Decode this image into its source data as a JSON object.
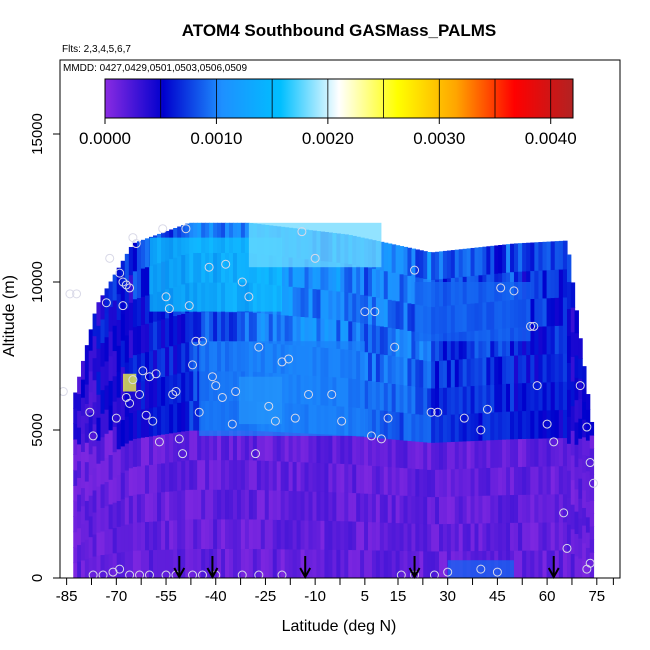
{
  "chart_data": {
    "type": "heatmap",
    "title": "ATOM4 Southbound GASMass_PALMS",
    "flights_note": "Flts: 2,3,4,5,6,7",
    "dates_note": "MMDD: 0427,0429,0501,0503,0506,0509",
    "xlabel": "Latitude (deg N)",
    "ylabel": "Altitude (m)",
    "xlim": [
      -87,
      82
    ],
    "ylim": [
      0,
      17500
    ],
    "x_ticks": [
      -85,
      -70,
      -55,
      -40,
      -25,
      -10,
      5,
      15,
      30,
      45,
      60,
      75
    ],
    "x_tick_labels": [
      "-85",
      "-70",
      "-55",
      "-40",
      "-25",
      "-10",
      "5",
      "15",
      "30",
      "45",
      "60",
      "75"
    ],
    "x_minor_ticks": [
      -77.5,
      -62.5,
      -47.5,
      -32.5,
      -17.5,
      -2.5,
      22.5,
      37.5,
      52.5,
      67.5,
      80
    ],
    "y_ticks": [
      0,
      5000,
      10000,
      15000
    ],
    "y_tick_labels": [
      "0",
      "5000",
      "10000",
      "15000"
    ],
    "colorbar": {
      "range": [
        0,
        0.0042
      ],
      "ticks": [
        0.0,
        0.001,
        0.002,
        0.003,
        0.004
      ],
      "tick_labels": [
        "0.0000",
        "0.0010",
        "0.0020",
        "0.0030",
        "0.0040"
      ],
      "colors": [
        "#8a2be2",
        "#0000cd",
        "#1e90ff",
        "#00bfff",
        "#ffffff",
        "#ffff00",
        "#ffa500",
        "#ff0000",
        "#b22222"
      ]
    },
    "columns": [
      {
        "x": [
          -83,
          -76
        ],
        "zmax": [
          6000,
          9200
        ],
        "base": 0.0002
      },
      {
        "x": [
          -76,
          -65
        ],
        "zmax": [
          9200,
          11300
        ],
        "base": 0.0003
      },
      {
        "x": [
          -65,
          -48
        ],
        "zmax": [
          11300,
          12000
        ],
        "base": 0.0004
      },
      {
        "x": [
          -48,
          -30
        ],
        "zmax": [
          12000,
          12000
        ],
        "base": 0.0006
      },
      {
        "x": [
          -30,
          0
        ],
        "zmax": [
          12000,
          11600
        ],
        "base": 0.0008
      },
      {
        "x": [
          0,
          25
        ],
        "zmax": [
          11600,
          11000
        ],
        "base": 0.0007
      },
      {
        "x": [
          25,
          50
        ],
        "zmax": [
          11000,
          11300
        ],
        "base": 0.0005
      },
      {
        "x": [
          50,
          66
        ],
        "zmax": [
          11300,
          11400
        ],
        "base": 0.0004
      },
      {
        "x": [
          66,
          74
        ],
        "zmax": [
          11400,
          4800
        ],
        "base": 0.0003
      }
    ],
    "features": [
      {
        "name": "upper-tropospheric-band-south",
        "x": [
          -60,
          -20
        ],
        "z": [
          9000,
          11500
        ],
        "value": 0.0016
      },
      {
        "name": "upper-tropospheric-band-north",
        "x": [
          -30,
          10
        ],
        "z": [
          10500,
          12000
        ],
        "value": 0.0018
      },
      {
        "name": "mid-level-plume",
        "x": [
          -33,
          -20
        ],
        "z": [
          5200,
          6800
        ],
        "value": 0.0017
      },
      {
        "name": "mid-level-hotspot",
        "x": [
          -68,
          -64
        ],
        "z": [
          6300,
          6900
        ],
        "value": 0.0025
      },
      {
        "name": "blue-band-mid",
        "x": [
          -45,
          5
        ],
        "z": [
          4800,
          8000
        ],
        "value": 0.001
      },
      {
        "name": "blue-band-north",
        "x": [
          20,
          55
        ],
        "z": [
          8000,
          10000
        ],
        "value": 0.0009
      },
      {
        "name": "surface-blue-north",
        "x": [
          30,
          50
        ],
        "z": [
          0,
          600
        ],
        "value": 0.0009
      }
    ],
    "sample_points": [
      [
        -86,
        6300
      ],
      [
        -84,
        9600
      ],
      [
        -82,
        9600
      ],
      [
        -78,
        5600
      ],
      [
        -77,
        4800
      ],
      [
        -73,
        9300
      ],
      [
        -72,
        10800
      ],
      [
        -70,
        5400
      ],
      [
        -69,
        10300
      ],
      [
        -68,
        10000
      ],
      [
        -67,
        9900
      ],
      [
        -66,
        9800
      ],
      [
        -65,
        11500
      ],
      [
        -64,
        11300
      ],
      [
        -68,
        9200
      ],
      [
        -67,
        6100
      ],
      [
        -66,
        5900
      ],
      [
        -65,
        6700
      ],
      [
        -63,
        6200
      ],
      [
        -62,
        7000
      ],
      [
        -61,
        5500
      ],
      [
        -60,
        6800
      ],
      [
        -59,
        5300
      ],
      [
        -58,
        6900
      ],
      [
        -57,
        4600
      ],
      [
        -56,
        11800
      ],
      [
        -55,
        9500
      ],
      [
        -54,
        9100
      ],
      [
        -53,
        6200
      ],
      [
        -52,
        6300
      ],
      [
        -51,
        4700
      ],
      [
        -50,
        4200
      ],
      [
        -49,
        11800
      ],
      [
        -48,
        9200
      ],
      [
        -47,
        7200
      ],
      [
        -46,
        8000
      ],
      [
        -45,
        5600
      ],
      [
        -44,
        8000
      ],
      [
        -42,
        10500
      ],
      [
        -41,
        6800
      ],
      [
        -40,
        6500
      ],
      [
        -38,
        6100
      ],
      [
        -37,
        10600
      ],
      [
        -35,
        5200
      ],
      [
        -34,
        6300
      ],
      [
        -32,
        10000
      ],
      [
        -30,
        9500
      ],
      [
        -28,
        4200
      ],
      [
        -27,
        7800
      ],
      [
        -24,
        5800
      ],
      [
        -22,
        5300
      ],
      [
        -20,
        7300
      ],
      [
        -18,
        7400
      ],
      [
        -16,
        5400
      ],
      [
        -14,
        11700
      ],
      [
        -12,
        6200
      ],
      [
        -10,
        10800
      ],
      [
        -5,
        6200
      ],
      [
        -2,
        5300
      ],
      [
        5,
        9000
      ],
      [
        7,
        4800
      ],
      [
        8,
        9000
      ],
      [
        10,
        4700
      ],
      [
        12,
        5400
      ],
      [
        14,
        7800
      ],
      [
        20,
        10400
      ],
      [
        25,
        5600
      ],
      [
        27,
        5600
      ],
      [
        35,
        5400
      ],
      [
        40,
        5000
      ],
      [
        42,
        5700
      ],
      [
        46,
        9800
      ],
      [
        50,
        9700
      ],
      [
        55,
        8500
      ],
      [
        56,
        8500
      ],
      [
        57,
        6500
      ],
      [
        60,
        5200
      ],
      [
        62,
        4600
      ],
      [
        65,
        2200
      ],
      [
        66,
        1000
      ],
      [
        70,
        6500
      ],
      [
        72,
        5100
      ],
      [
        73,
        3900
      ],
      [
        74,
        3200
      ],
      [
        -77,
        100
      ],
      [
        -74,
        100
      ],
      [
        -71,
        200
      ],
      [
        -69,
        300
      ],
      [
        -66,
        100
      ],
      [
        -63,
        100
      ],
      [
        -60,
        100
      ],
      [
        -55,
        100
      ],
      [
        -52,
        100
      ],
      [
        -47,
        100
      ],
      [
        -44,
        100
      ],
      [
        -40,
        100
      ],
      [
        -32,
        100
      ],
      [
        -27,
        100
      ],
      [
        -20,
        100
      ],
      [
        16,
        100
      ],
      [
        20,
        100
      ],
      [
        26,
        100
      ],
      [
        30,
        200
      ],
      [
        40,
        300
      ],
      [
        45,
        200
      ],
      [
        72,
        300
      ],
      [
        73,
        500
      ]
    ],
    "arrows_latitude": [
      -51,
      -41,
      -13,
      20,
      62
    ]
  }
}
